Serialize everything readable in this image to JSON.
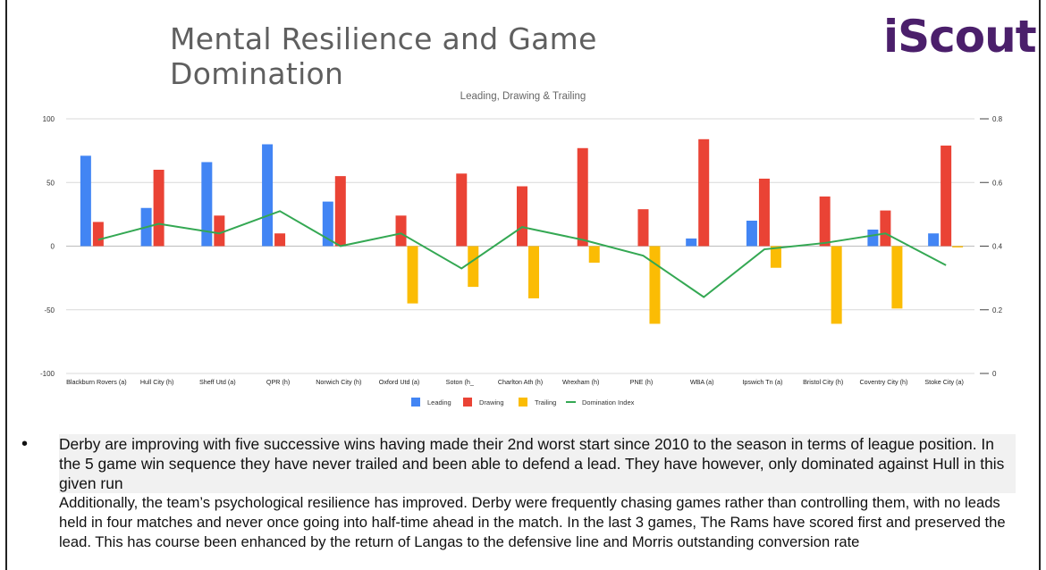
{
  "header": {
    "title": "Mental Resilience and Game Domination",
    "logo": "iScout"
  },
  "chart_data": {
    "type": "bar",
    "title": "Leading, Drawing & Trailing",
    "categories": [
      "Blackburn Rovers (a)",
      "Hull City (h)",
      "Sheff Utd (a)",
      "QPR (h)",
      "Norwich City (h)",
      "Oxford Utd (a)",
      "Soton (h_",
      "Charlton Ath (h)",
      "Wrexham (h)",
      "PNE (h)",
      "WBA (a)",
      "Ipswich Tn (a)",
      "Bristol City (h)",
      "Coventry City (h)",
      "Stoke City (a)"
    ],
    "series": [
      {
        "name": "Leading",
        "color": "#4285f4",
        "axis": "left",
        "values": [
          71,
          30,
          66,
          80,
          35,
          0,
          0,
          0,
          0,
          0,
          6,
          20,
          0,
          13,
          10
        ]
      },
      {
        "name": "Drawing",
        "color": "#ea4335",
        "axis": "left",
        "values": [
          19,
          60,
          24,
          10,
          55,
          24,
          57,
          47,
          77,
          29,
          84,
          53,
          39,
          28,
          79
        ]
      },
      {
        "name": "Trailing",
        "color": "#fbbc04",
        "axis": "left",
        "values": [
          0,
          0,
          0,
          0,
          0,
          -45,
          -32,
          -41,
          -13,
          -61,
          0,
          -17,
          -61,
          -49,
          -1
        ]
      },
      {
        "name": "Domination Index",
        "color": "#34a853",
        "axis": "right",
        "type": "line",
        "values": [
          0.42,
          0.47,
          0.44,
          0.51,
          0.4,
          0.44,
          0.33,
          0.46,
          0.42,
          0.37,
          0.24,
          0.39,
          0.41,
          0.44,
          0.34
        ]
      }
    ],
    "ylim": [
      -100,
      100
    ],
    "yticks": [
      "100",
      "50",
      "0",
      "-50",
      "-100"
    ],
    "y2lim": [
      0,
      0.8
    ],
    "y2ticks": [
      "0.8",
      "0.6",
      "0.4",
      "0.2",
      "0"
    ],
    "legend_position": "bottom"
  },
  "notes": {
    "bullet": "•",
    "bullet_text": "Derby are improving with five successive wins having made their 2nd worst start since 2010 to the season in terms of league position. In the 5 game win sequence they have never trailed and been able to defend a lead. They have however, only dominated against Hull in this given run",
    "paragraph": "Additionally, the team’s psychological resilience has improved. Derby were frequently chasing games rather than controlling them, with no leads held in four matches and never once going into half-time ahead in the match. In the last 3 games, The Rams have scored first and preserved the lead. This has course been enhanced by the return of Langas to the defensive line and Morris outstanding conversion rate"
  }
}
